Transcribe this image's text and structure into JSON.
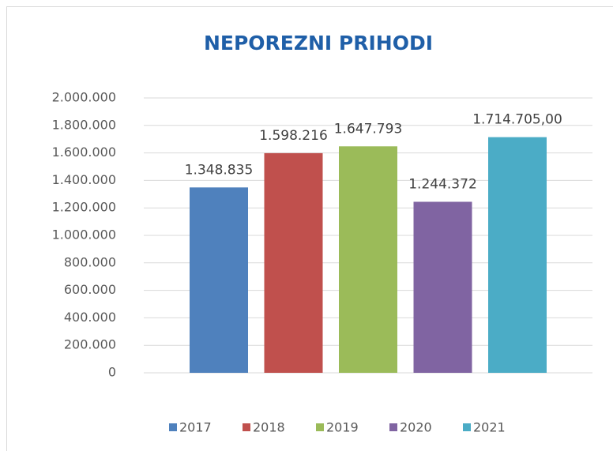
{
  "chart_data": {
    "type": "bar",
    "title": "NEPOREZNI PRIHODI",
    "categories": [
      null
    ],
    "series": [
      {
        "name": "2017",
        "color": "#4f81bd",
        "values": [
          1348835
        ],
        "value_labels": [
          "1.348.835"
        ]
      },
      {
        "name": "2018",
        "color": "#c0504d",
        "values": [
          1598216
        ],
        "value_labels": [
          "1.598.216"
        ]
      },
      {
        "name": "2019",
        "color": "#9bbb59",
        "values": [
          1647793
        ],
        "value_labels": [
          "1.647.793"
        ]
      },
      {
        "name": "2020",
        "color": "#8064a2",
        "values": [
          1244372
        ],
        "value_labels": [
          "1.244.372"
        ]
      },
      {
        "name": "2021",
        "color": "#4bacc6",
        "values": [
          1714705
        ],
        "value_labels": [
          "1.714.705,00"
        ]
      }
    ],
    "ylim": [
      0,
      2000000
    ],
    "yticks": [
      0,
      {
        "value": 200000,
        "label": "200.000"
      },
      {
        "value": 400000,
        "label": "400.000"
      },
      {
        "value": 600000,
        "label": "600.000"
      },
      {
        "value": 800000,
        "label": "800.000"
      },
      {
        "value": 1000000,
        "label": "1.000.000"
      },
      {
        "value": 1200000,
        "label": "1.200.000"
      },
      {
        "value": 1400000,
        "label": "1.400.000"
      },
      {
        "value": 1600000,
        "label": "1.600.000"
      },
      {
        "value": 1800000,
        "label": "1.800.000"
      },
      {
        "value": 2000000,
        "label": "2.000.000"
      }
    ],
    "grid": true,
    "legend": "bottom"
  }
}
